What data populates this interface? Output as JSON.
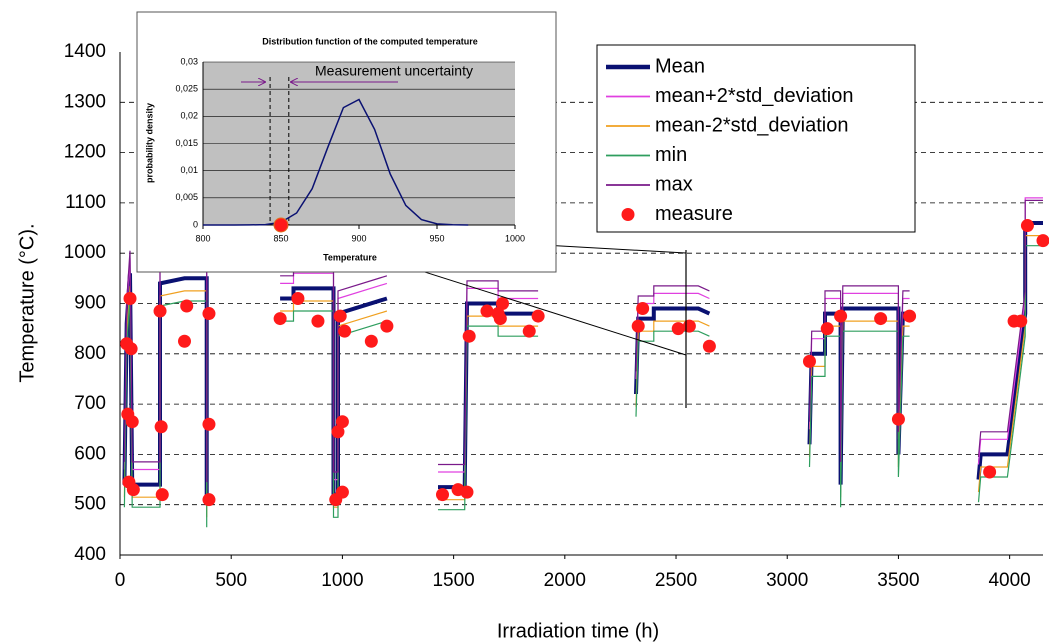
{
  "chart_data": [
    {
      "type": "line",
      "x_label": "Irradiation time (h)",
      "y_label": "Temperature (°C).",
      "xlim": [
        0,
        4150
      ],
      "ylim": [
        400,
        1400
      ],
      "xticks": [
        0,
        500,
        1000,
        1500,
        2000,
        2500,
        3000,
        3500,
        4000
      ],
      "yticks": [
        400,
        500,
        600,
        700,
        800,
        900,
        1000,
        1100,
        1200,
        1300,
        1400
      ],
      "grid": true,
      "x": [
        20,
        30,
        45,
        55,
        180,
        180,
        290,
        390,
        390,
        500,
        720,
        780,
        780,
        960,
        960,
        980,
        980,
        1200,
        1300,
        1430,
        1550,
        1560,
        1700,
        1700,
        1880,
        2000,
        2320,
        2330,
        2400,
        2400,
        2600,
        2650,
        2800,
        3100,
        3110,
        3170,
        3170,
        3240,
        3240,
        3250,
        3500,
        3500,
        3520,
        3550,
        3700,
        3860,
        3870,
        3990,
        4070,
        4070,
        4150
      ],
      "series": [
        {
          "name": "Mean",
          "color": "#0a1172",
          "width": 4,
          "values": [
            540,
            860,
            960,
            540,
            540,
            940,
            950,
            950,
            500,
            null,
            910,
            910,
            930,
            930,
            520,
            520,
            880,
            910,
            null,
            535,
            535,
            900,
            900,
            880,
            880,
            null,
            720,
            870,
            870,
            890,
            890,
            880,
            null,
            620,
            800,
            800,
            880,
            880,
            540,
            890,
            890,
            600,
            880,
            880,
            null,
            550,
            600,
            600,
            880,
            1060,
            1060
          ]
        },
        {
          "name": "mean+2*std_deviation",
          "color": "#e040e0",
          "width": 1.2,
          "values": [
            570,
            890,
            990,
            570,
            570,
            970,
            980,
            980,
            530,
            null,
            940,
            940,
            960,
            960,
            550,
            550,
            910,
            940,
            null,
            565,
            565,
            930,
            930,
            910,
            910,
            null,
            750,
            900,
            900,
            920,
            920,
            910,
            null,
            650,
            830,
            830,
            910,
            910,
            570,
            920,
            920,
            630,
            910,
            910,
            null,
            580,
            630,
            630,
            910,
            1110,
            1110
          ]
        },
        {
          "name": "mean-2*std_deviation",
          "color": "#f0a020",
          "width": 1.2,
          "values": [
            515,
            835,
            935,
            515,
            515,
            915,
            925,
            925,
            475,
            null,
            885,
            885,
            905,
            905,
            495,
            495,
            855,
            885,
            null,
            510,
            510,
            875,
            875,
            855,
            855,
            null,
            695,
            845,
            845,
            865,
            865,
            855,
            null,
            595,
            775,
            775,
            855,
            855,
            515,
            865,
            865,
            575,
            855,
            855,
            null,
            525,
            575,
            575,
            855,
            1035,
            1035
          ]
        },
        {
          "name": "min",
          "color": "#2e9e5e",
          "width": 1.2,
          "values": [
            495,
            815,
            915,
            495,
            495,
            895,
            905,
            905,
            455,
            null,
            865,
            865,
            885,
            885,
            475,
            475,
            835,
            865,
            null,
            490,
            490,
            855,
            855,
            835,
            835,
            null,
            675,
            825,
            825,
            845,
            845,
            835,
            null,
            575,
            755,
            755,
            835,
            835,
            495,
            845,
            845,
            555,
            835,
            835,
            null,
            505,
            555,
            555,
            835,
            1015,
            1015
          ]
        },
        {
          "name": "max",
          "color": "#7a1a8a",
          "width": 1.2,
          "values": [
            585,
            905,
            1005,
            585,
            585,
            985,
            995,
            995,
            545,
            null,
            955,
            955,
            975,
            975,
            565,
            565,
            925,
            955,
            null,
            580,
            580,
            945,
            945,
            925,
            925,
            null,
            765,
            915,
            915,
            935,
            935,
            925,
            null,
            665,
            845,
            845,
            925,
            925,
            585,
            935,
            935,
            645,
            925,
            925,
            null,
            595,
            645,
            645,
            925,
            1105,
            1105
          ]
        },
        {
          "name": "measure",
          "type": "scatter",
          "color": "#ff1a1a",
          "x": [
            30,
            35,
            40,
            45,
            50,
            55,
            60,
            180,
            185,
            190,
            290,
            300,
            400,
            400,
            400,
            720,
            800,
            890,
            970,
            980,
            990,
            1000,
            1000,
            1010,
            1130,
            1200,
            1450,
            1520,
            1560,
            1570,
            1650,
            1700,
            1710,
            1720,
            1840,
            1880,
            2330,
            2350,
            2510,
            2560,
            2650,
            3100,
            3180,
            3240,
            3420,
            3500,
            3550,
            3910,
            4020,
            4050,
            4080,
            4150
          ],
          "values": [
            820,
            680,
            545,
            910,
            810,
            665,
            530,
            885,
            655,
            520,
            825,
            895,
            880,
            660,
            510,
            870,
            910,
            865,
            510,
            645,
            875,
            665,
            525,
            845,
            825,
            855,
            520,
            530,
            525,
            835,
            885,
            880,
            870,
            900,
            845,
            875,
            855,
            890,
            850,
            855,
            815,
            785,
            850,
            875,
            870,
            670,
            875,
            565,
            865,
            865,
            1055,
            1025
          ]
        }
      ]
    },
    {
      "type": "line",
      "title": "Distribution function of the computed temperature",
      "x_label": "Temperature",
      "y_label": "probability density",
      "annotation": "Measurement uncertainty",
      "xlim": [
        800,
        1000
      ],
      "ylim": [
        0,
        0.03
      ],
      "xticks": [
        800,
        850,
        900,
        950,
        1000
      ],
      "yticks": [
        0,
        {
          "value": 0.005,
          "label": "0,005"
        },
        {
          "value": 0.01,
          "label": "0,01"
        },
        {
          "value": 0.015,
          "label": "0,015"
        },
        {
          "value": 0.02,
          "label": "0,02"
        },
        {
          "value": 0.025,
          "label": "0,025"
        },
        {
          "value": 0.03,
          "label": "0,03"
        }
      ],
      "color": "#0a1172",
      "background": "#c0c0c0",
      "x": [
        800,
        810,
        820,
        830,
        840,
        850,
        860,
        870,
        880,
        890,
        900,
        910,
        920,
        930,
        940,
        950,
        960,
        970
      ],
      "values": [
        0,
        0,
        0,
        1e-05,
        8e-05,
        0.0005,
        0.0022,
        0.0067,
        0.0143,
        0.0216,
        0.0231,
        0.0176,
        0.0094,
        0.0036,
        0.001,
        0.0002,
        3e-05,
        0
      ],
      "uncertainty": [
        843,
        855
      ],
      "measure": {
        "x": 850,
        "y": 0,
        "color": "#ff1a1a"
      }
    }
  ]
}
